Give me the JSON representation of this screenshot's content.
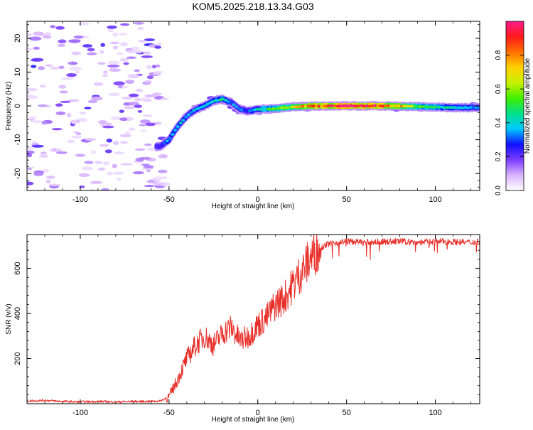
{
  "title": "KOM5.2025.218.13.34.G03",
  "colors": {
    "snr_line": "#e8302a",
    "axis": "#000000",
    "background": "#ffffff",
    "colorbar_stops": [
      "#ffffff",
      "#d9b3ff",
      "#7b3cff",
      "#1010ff",
      "#00c8ff",
      "#00e08c",
      "#40f000",
      "#c8f000",
      "#ffd000",
      "#ff7000",
      "#ff1a1a",
      "#ff1a8c"
    ]
  },
  "chart_data": [
    {
      "type": "heatmap",
      "name": "spectrogram",
      "xlabel": "Height of straight line (km)",
      "ylabel": "Frequency (Hz)",
      "xlim": [
        -130,
        125
      ],
      "ylim": [
        -25,
        25
      ],
      "xticks": [
        -100,
        -50,
        0,
        50,
        100
      ],
      "yticks": [
        -20,
        -10,
        0,
        10,
        20
      ],
      "xtick_labels": [
        "-100",
        "-50",
        "0",
        "50",
        "100"
      ],
      "ytick_labels": [
        "-20",
        "-10",
        "0",
        "10",
        "20"
      ],
      "colorbar": {
        "label": "Normalized spectral amplitude",
        "range": [
          0,
          1
        ],
        "ticks": [
          0.0,
          0.2,
          0.4,
          0.6,
          0.8
        ],
        "tick_labels": [
          "0.0",
          "0.2",
          "0.4",
          "0.6",
          "0.8"
        ]
      },
      "ridge": {
        "x": [
          -55,
          -50,
          -45,
          -40,
          -35,
          -30,
          -25,
          -20,
          -15,
          -10,
          -5,
          0,
          10,
          20,
          30,
          50,
          70,
          90,
          110,
          125
        ],
        "freq": [
          -12,
          -10,
          -6,
          -3,
          -1,
          0,
          1.5,
          2,
          1,
          -1,
          -1.5,
          -1,
          -0.8,
          -0.3,
          0,
          0,
          0,
          -0.2,
          -0.5,
          -0.5
        ],
        "amplitude": [
          0.25,
          0.35,
          0.4,
          0.35,
          0.35,
          0.35,
          0.4,
          0.45,
          0.35,
          0.3,
          0.3,
          0.4,
          0.55,
          0.65,
          0.8,
          1.0,
          0.9,
          0.55,
          0.4,
          0.35
        ]
      }
    },
    {
      "type": "line",
      "name": "snr",
      "xlabel": "Height of straight line (km)",
      "ylabel": "SNR (v/v)",
      "xlim": [
        -130,
        125
      ],
      "ylim": [
        0,
        750
      ],
      "xticks": [
        -100,
        -50,
        0,
        50,
        100
      ],
      "yticks": [
        200,
        400,
        600
      ],
      "xtick_labels": [
        "-100",
        "-50",
        "0",
        "50",
        "100"
      ],
      "ytick_labels": [
        "200",
        "400",
        "600"
      ],
      "series": [
        {
          "name": "SNR",
          "x": [
            -130,
            -120,
            -110,
            -100,
            -90,
            -80,
            -70,
            -60,
            -55,
            -50,
            -45,
            -40,
            -35,
            -30,
            -25,
            -20,
            -15,
            -10,
            -5,
            0,
            5,
            10,
            15,
            20,
            25,
            30,
            35,
            40,
            50,
            60,
            70,
            80,
            90,
            100,
            110,
            120,
            125
          ],
          "y": [
            12,
            15,
            10,
            8,
            10,
            8,
            10,
            10,
            12,
            30,
            110,
            200,
            260,
            300,
            260,
            310,
            340,
            280,
            300,
            350,
            380,
            440,
            470,
            530,
            590,
            650,
            690,
            710,
            720,
            715,
            718,
            720,
            715,
            720,
            718,
            715,
            720
          ]
        }
      ]
    }
  ]
}
